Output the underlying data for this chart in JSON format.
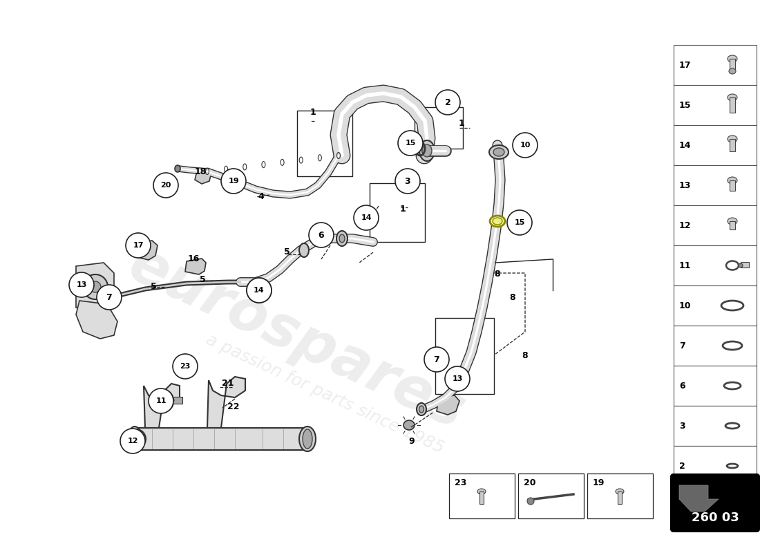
{
  "background_color": "#ffffff",
  "fig_width": 11.0,
  "fig_height": 8.0,
  "watermark_line1": "eurospares",
  "watermark_line2": "a passion for parts since 1985",
  "part_number": "260 03",
  "sidebar_items": [
    {
      "num": "17",
      "type": "bolt_top"
    },
    {
      "num": "15",
      "type": "bolt_hex_long"
    },
    {
      "num": "14",
      "type": "bolt_hex_med"
    },
    {
      "num": "13",
      "type": "bolt_hex_sm"
    },
    {
      "num": "12",
      "type": "bolt_hex_xs"
    },
    {
      "num": "11",
      "type": "clamp_ring"
    },
    {
      "num": "10",
      "type": "oring_lg"
    },
    {
      "num": "7",
      "type": "oring_md"
    },
    {
      "num": "6",
      "type": "oring_sm"
    },
    {
      "num": "3",
      "type": "oring_xs"
    },
    {
      "num": "2",
      "type": "oring_xxs"
    }
  ],
  "bottom_boxes": [
    {
      "num": "23",
      "type": "bolt_icon"
    },
    {
      "num": "20",
      "type": "rod_icon"
    },
    {
      "num": "19",
      "type": "bolt_icon2"
    }
  ]
}
